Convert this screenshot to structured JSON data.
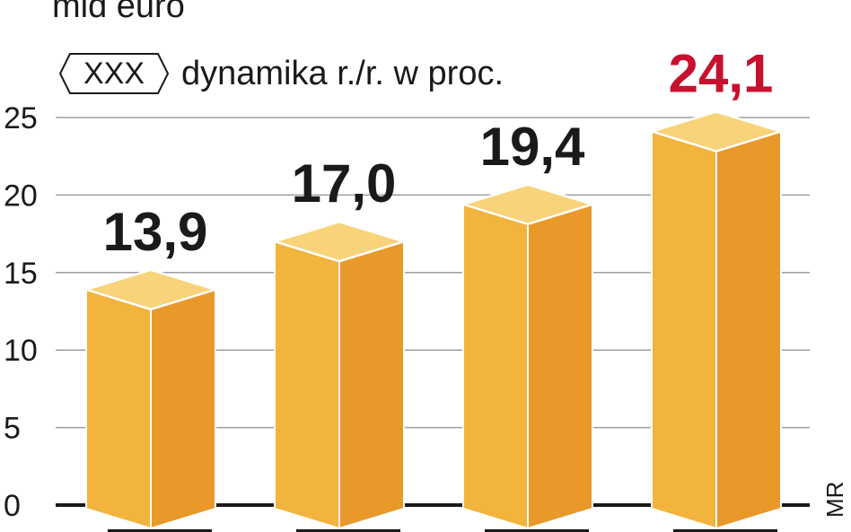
{
  "header": {
    "unit": "mld euro",
    "legend_badge": "XXX",
    "legend_text": "dynamika r./r. w proc."
  },
  "source": "MR",
  "colors": {
    "bar_front": "#f2b43c",
    "bar_side": "#e8992a",
    "bar_top": "#f8d37a",
    "label": "#1a1a1a",
    "highlight_label": "#c8102e",
    "grid": "#9e9e9e"
  },
  "chart_data": {
    "type": "bar",
    "categories": [
      "",
      "",
      "",
      ""
    ],
    "values": [
      13.9,
      17.0,
      19.4,
      24.1
    ],
    "value_labels": [
      "13,9",
      "17,0",
      "19,4",
      "24,1"
    ],
    "highlight_index": 3,
    "ylim": [
      0,
      25
    ],
    "yticks": [
      "0",
      "5",
      "10",
      "15",
      "20",
      "25"
    ],
    "grid": true,
    "title": "",
    "xlabel": "",
    "ylabel": "mld euro"
  }
}
